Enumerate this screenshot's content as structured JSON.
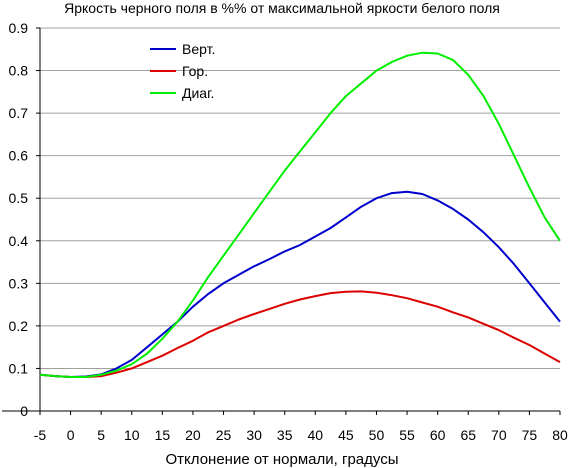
{
  "chart_data": {
    "type": "line",
    "title": "Яркость черного поля в %% от максимальной яркости белого поля",
    "xlabel": "Отклонение от нормали, градусы",
    "ylabel": "",
    "xlim": [
      -5,
      80
    ],
    "ylim": [
      0,
      0.9
    ],
    "xticks": [
      "-5",
      "0",
      "5",
      "10",
      "15",
      "20",
      "25",
      "30",
      "35",
      "40",
      "45",
      "50",
      "55",
      "60",
      "65",
      "70",
      "75",
      "80"
    ],
    "yticks": [
      "0",
      "0.1",
      "0.2",
      "0.3",
      "0.4",
      "0.5",
      "0.6",
      "0.7",
      "0.8",
      "0.9"
    ],
    "grid": "horizontal",
    "legend_position": "top-left",
    "series": [
      {
        "name": "Верт.",
        "color": "#0000cc",
        "x": [
          -5,
          -2.5,
          0,
          2.5,
          5,
          7.5,
          10,
          12.5,
          15,
          17.5,
          20,
          22.5,
          25,
          27.5,
          30,
          32.5,
          35,
          37.5,
          40,
          42.5,
          45,
          47.5,
          50,
          52.5,
          55,
          57.5,
          60,
          62.5,
          65,
          67.5,
          70,
          72.5,
          75,
          77.5,
          80
        ],
        "values": [
          0.085,
          0.082,
          0.08,
          0.081,
          0.086,
          0.1,
          0.12,
          0.15,
          0.18,
          0.21,
          0.245,
          0.275,
          0.3,
          0.32,
          0.34,
          0.357,
          0.375,
          0.39,
          0.41,
          0.43,
          0.455,
          0.48,
          0.5,
          0.512,
          0.515,
          0.51,
          0.495,
          0.475,
          0.45,
          0.42,
          0.385,
          0.345,
          0.3,
          0.255,
          0.21
        ]
      },
      {
        "name": "Гор.",
        "color": "#dd0000",
        "x": [
          -5,
          -2.5,
          0,
          2.5,
          5,
          7.5,
          10,
          12.5,
          15,
          17.5,
          20,
          22.5,
          25,
          27.5,
          30,
          32.5,
          35,
          37.5,
          40,
          42.5,
          45,
          47.5,
          50,
          52.5,
          55,
          57.5,
          60,
          62.5,
          65,
          67.5,
          70,
          72.5,
          75,
          77.5,
          80
        ],
        "values": [
          0.085,
          0.082,
          0.08,
          0.08,
          0.082,
          0.09,
          0.1,
          0.115,
          0.13,
          0.148,
          0.165,
          0.185,
          0.2,
          0.215,
          0.228,
          0.24,
          0.252,
          0.262,
          0.27,
          0.277,
          0.28,
          0.281,
          0.278,
          0.272,
          0.265,
          0.255,
          0.245,
          0.232,
          0.22,
          0.205,
          0.19,
          0.172,
          0.155,
          0.135,
          0.115
        ]
      },
      {
        "name": "Диаг.",
        "color": "#00ee00",
        "x": [
          -5,
          -2.5,
          0,
          2.5,
          5,
          7.5,
          10,
          12.5,
          15,
          17.5,
          20,
          22.5,
          25,
          27.5,
          30,
          32.5,
          35,
          37.5,
          40,
          42.5,
          45,
          47.5,
          50,
          52.5,
          55,
          57.5,
          60,
          62.5,
          65,
          67.5,
          70,
          72.5,
          75,
          77.5,
          80
        ],
        "values": [
          0.085,
          0.082,
          0.08,
          0.08,
          0.085,
          0.095,
          0.11,
          0.135,
          0.17,
          0.21,
          0.26,
          0.315,
          0.365,
          0.415,
          0.465,
          0.515,
          0.565,
          0.61,
          0.655,
          0.7,
          0.74,
          0.77,
          0.8,
          0.82,
          0.835,
          0.842,
          0.84,
          0.825,
          0.79,
          0.74,
          0.675,
          0.6,
          0.525,
          0.455,
          0.4
        ]
      }
    ]
  }
}
